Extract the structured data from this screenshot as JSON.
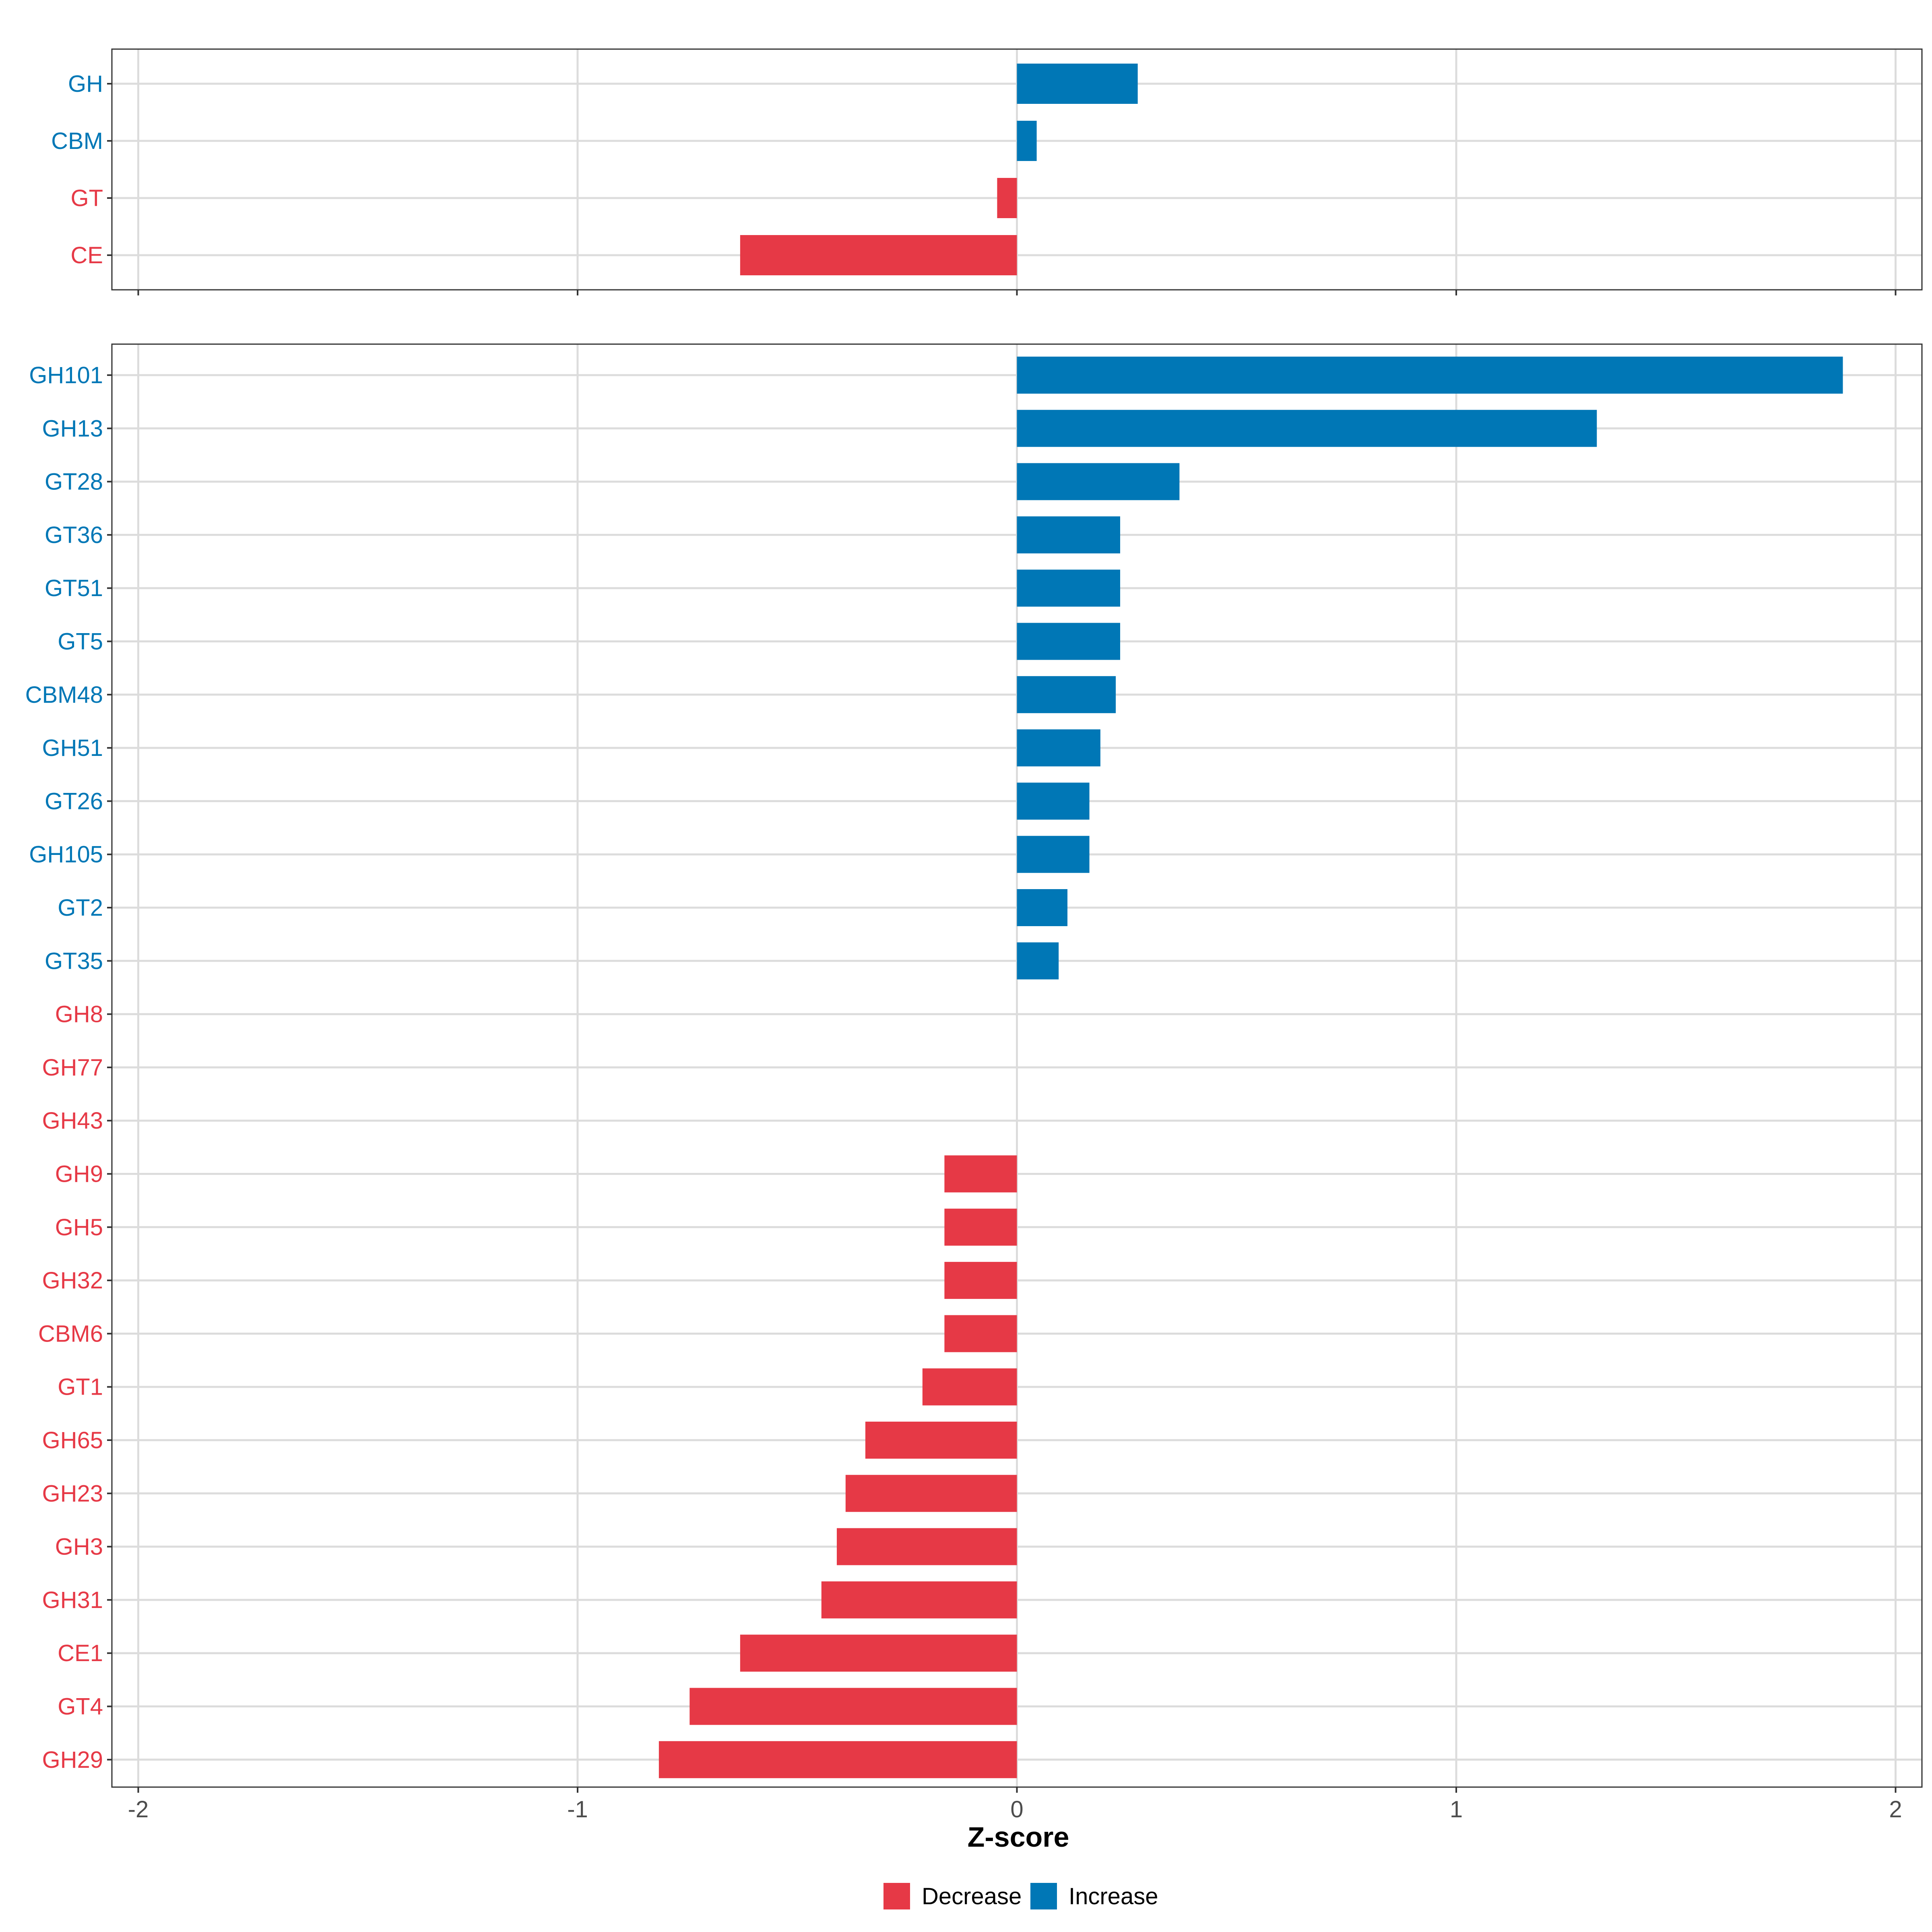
{
  "colors": {
    "decrease": "#e63946",
    "increase": "#0077b6",
    "grid": "#dcdcdc",
    "border": "#333333",
    "tick_text": "#4d4d4d"
  },
  "chart_data": {
    "type": "bar",
    "orientation": "horizontal",
    "xlabel": "Z-score",
    "xlim": [
      -2.06,
      2.06
    ],
    "x_ticks": [
      -2,
      -1,
      0,
      1,
      2
    ],
    "x_tick_labels": [
      "-2",
      "-1",
      "0",
      "1",
      "2"
    ],
    "grid": true,
    "legend": {
      "position": "bottom",
      "entries": [
        {
          "label": "Decrease",
          "color_key": "decrease"
        },
        {
          "label": "Increase",
          "color_key": "increase"
        }
      ]
    },
    "panels": [
      {
        "name": "classes",
        "categories": [
          "GH",
          "CBM",
          "GT",
          "CE"
        ],
        "values": [
          0.275,
          0.045,
          -0.045,
          -0.63
        ],
        "groups": [
          "Increase",
          "Increase",
          "Decrease",
          "Decrease"
        ]
      },
      {
        "name": "families",
        "categories": [
          "GH101",
          "GH13",
          "GT28",
          "GT36",
          "GT51",
          "GT5",
          "CBM48",
          "GH51",
          "GT26",
          "GH105",
          "GT2",
          "GT35",
          "GH8",
          "GH77",
          "GH43",
          "GH9",
          "GH5",
          "GH32",
          "CBM6",
          "GT1",
          "GH65",
          "GH23",
          "GH3",
          "GH31",
          "CE1",
          "GT4",
          "GH29"
        ],
        "values": [
          1.88,
          1.32,
          0.37,
          0.235,
          0.235,
          0.235,
          0.225,
          0.19,
          0.165,
          0.165,
          0.115,
          0.095,
          0,
          0,
          0,
          -0.165,
          -0.165,
          -0.165,
          -0.165,
          -0.215,
          -0.345,
          -0.39,
          -0.41,
          -0.445,
          -0.63,
          -0.745,
          -0.815
        ],
        "groups": [
          "Increase",
          "Increase",
          "Increase",
          "Increase",
          "Increase",
          "Increase",
          "Increase",
          "Increase",
          "Increase",
          "Increase",
          "Increase",
          "Increase",
          "Decrease",
          "Decrease",
          "Decrease",
          "Decrease",
          "Decrease",
          "Decrease",
          "Decrease",
          "Decrease",
          "Decrease",
          "Decrease",
          "Decrease",
          "Decrease",
          "Decrease",
          "Decrease",
          "Decrease"
        ]
      }
    ]
  }
}
